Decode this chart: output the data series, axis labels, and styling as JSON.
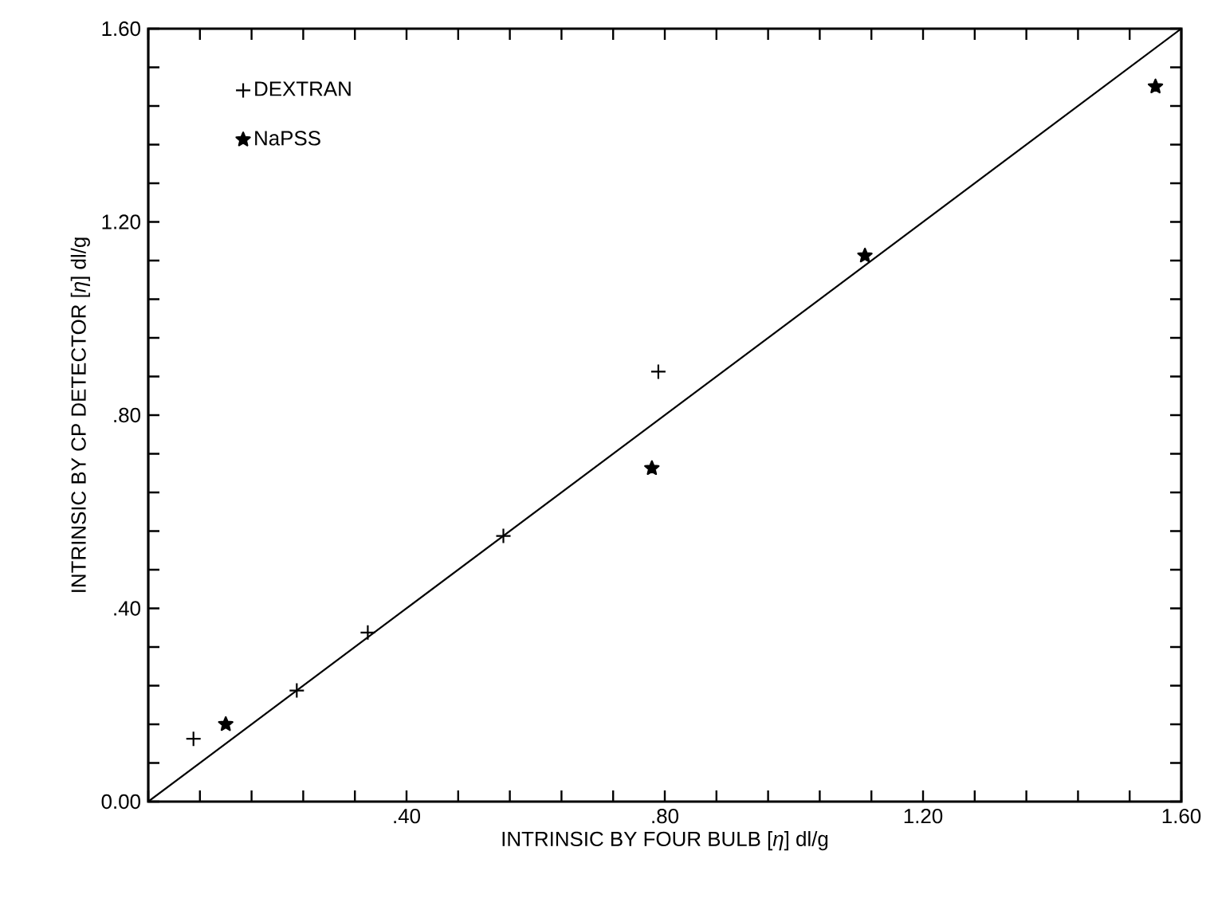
{
  "chart_data": {
    "type": "scatter",
    "xlabel": "INTRINSIC BY FOUR BULB [*η*] dl/g",
    "ylabel": "INTRINSIC BY CP DETECTOR [*η*] dl/g",
    "series": [
      {
        "name": "DEXTRAN",
        "marker": "cross",
        "color": "#000000",
        "x": [
          0.07,
          0.23,
          0.34,
          0.55,
          0.79
        ],
        "values": [
          0.13,
          0.23,
          0.35,
          0.55,
          0.89
        ]
      },
      {
        "name": "NaPSS",
        "marker": "star",
        "color": "#000000",
        "x": [
          0.12,
          0.78,
          1.11,
          1.56
        ],
        "values": [
          0.16,
          0.69,
          1.13,
          1.48
        ]
      },
      {
        "type": "line",
        "marker": "none",
        "color": "#000000",
        "x": [
          0,
          1.6
        ],
        "values": [
          0,
          1.6
        ]
      }
    ],
    "xlim": [
      0,
      1.6
    ],
    "ylim": [
      0,
      1.6
    ],
    "xticks": [
      {
        "value": 0,
        "label": null
      },
      {
        "value": 0.08,
        "label": null
      },
      {
        "value": 0.16,
        "label": null
      },
      {
        "value": 0.24,
        "label": null
      },
      {
        "value": 0.32,
        "label": null
      },
      {
        "value": 0.4,
        "label": ".40"
      },
      {
        "value": 0.48,
        "label": null
      },
      {
        "value": 0.56,
        "label": null
      },
      {
        "value": 0.64,
        "label": null
      },
      {
        "value": 0.72,
        "label": null
      },
      {
        "value": 0.8,
        "label": ".80"
      },
      {
        "value": 0.88,
        "label": null
      },
      {
        "value": 0.96,
        "label": null
      },
      {
        "value": 1.04,
        "label": null
      },
      {
        "value": 1.12,
        "label": null
      },
      {
        "value": 1.2,
        "label": "1.20"
      },
      {
        "value": 1.28,
        "label": null
      },
      {
        "value": 1.36,
        "label": null
      },
      {
        "value": 1.44,
        "label": null
      },
      {
        "value": 1.52,
        "label": null
      },
      {
        "value": 1.6,
        "label": "1.60"
      }
    ],
    "yticks": [
      {
        "value": 0,
        "label": "0.00"
      },
      {
        "value": 0.08,
        "label": null
      },
      {
        "value": 0.16,
        "label": null
      },
      {
        "value": 0.24,
        "label": null
      },
      {
        "value": 0.32,
        "label": null
      },
      {
        "value": 0.4,
        "label": ".40"
      },
      {
        "value": 0.48,
        "label": null
      },
      {
        "value": 0.56,
        "label": null
      },
      {
        "value": 0.64,
        "label": null
      },
      {
        "value": 0.72,
        "label": null
      },
      {
        "value": 0.8,
        "label": ".80"
      },
      {
        "value": 0.88,
        "label": null
      },
      {
        "value": 0.96,
        "label": null
      },
      {
        "value": 1.04,
        "label": null
      },
      {
        "value": 1.12,
        "label": null
      },
      {
        "value": 1.2,
        "label": "1.20"
      },
      {
        "value": 1.28,
        "label": null
      },
      {
        "value": 1.36,
        "label": null
      },
      {
        "value": 1.44,
        "label": null
      },
      {
        "value": 1.52,
        "label": null
      },
      {
        "value": 1.6,
        "label": "1.60"
      }
    ],
    "grid": false,
    "legend": "top left"
  }
}
